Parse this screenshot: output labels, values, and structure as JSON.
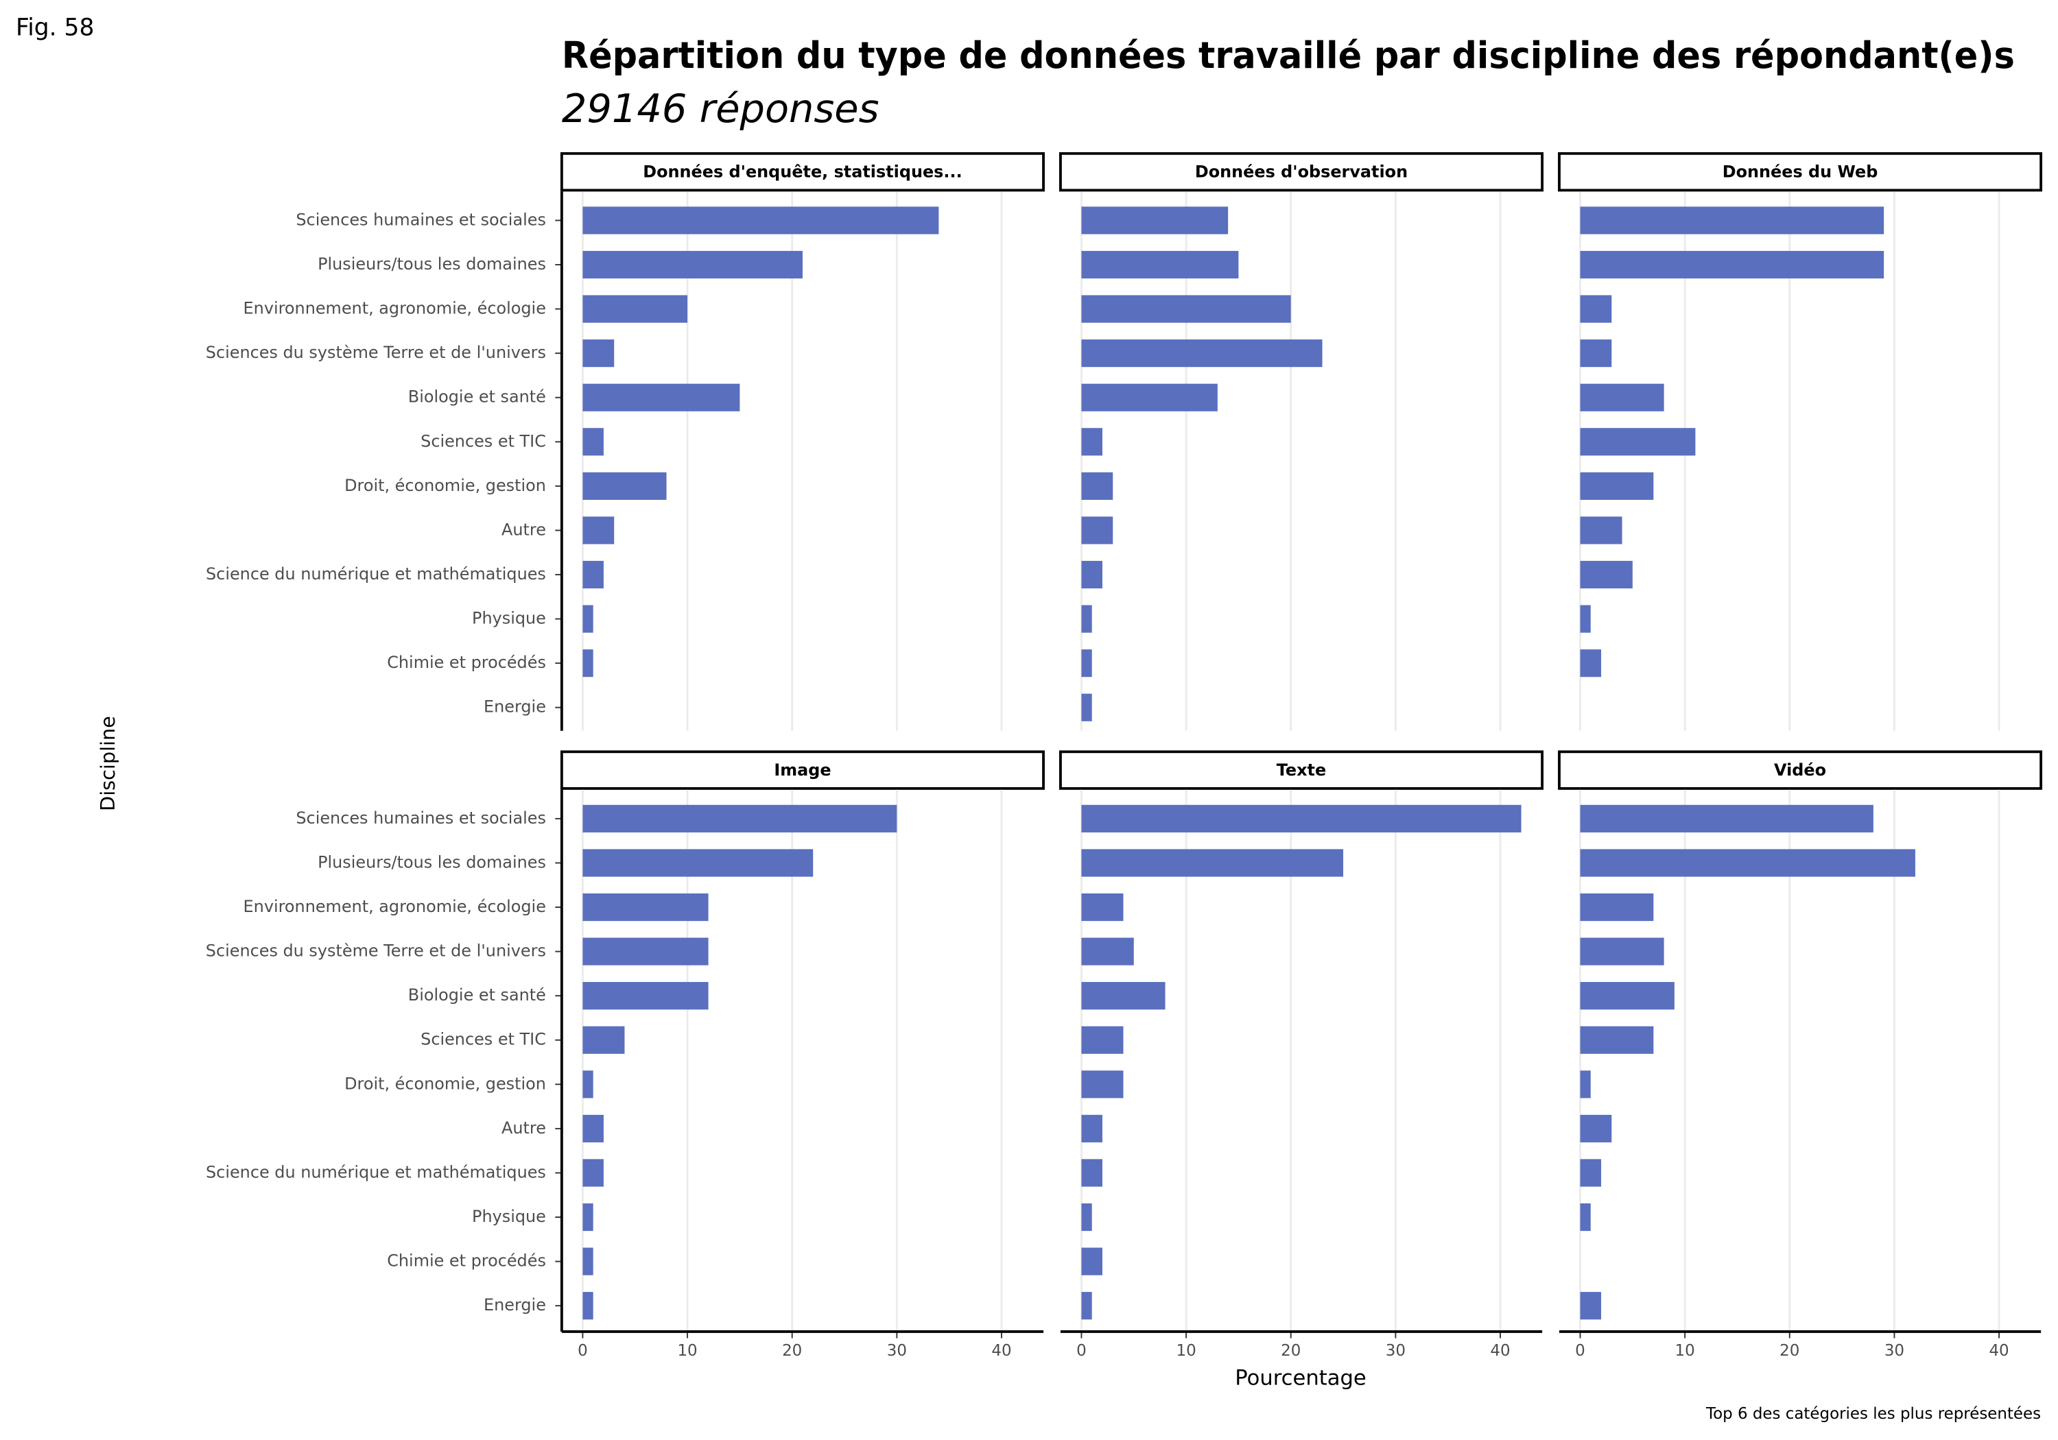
{
  "figure_label": "Fig. 58",
  "title": "Répartition du type de données travaillé par discipline des répondant(e)s",
  "subtitle": "29146 réponses",
  "y_label": "Discipline",
  "x_label": "Pourcentage",
  "caption": "Top 6 des catégories les plus représentées",
  "categories": [
    "Sciences humaines et sociales",
    "Plusieurs/tous les domaines",
    "Environnement, agronomie, écologie",
    "Sciences du système Terre et de l'univers",
    "Biologie et santé",
    "Sciences et TIC",
    "Droit, économie, gestion",
    "Autre",
    "Science du numérique et mathématiques",
    "Physique",
    "Chimie et procédés",
    "Energie"
  ],
  "xlim": [
    -2,
    44
  ],
  "xticks": [
    0,
    10,
    20,
    30,
    40
  ],
  "grid": true,
  "chart_data": [
    {
      "type": "bar",
      "orientation": "horizontal",
      "title": "Données d'enquête, statistiques...",
      "color": "#5a6fbe",
      "values": [
        34,
        21,
        10,
        3,
        15,
        2,
        8,
        3,
        2,
        1,
        1,
        null
      ]
    },
    {
      "type": "bar",
      "orientation": "horizontal",
      "title": "Données d'observation",
      "color": "#5a6fbe",
      "values": [
        14,
        15,
        20,
        23,
        13,
        2,
        3,
        3,
        2,
        1,
        1,
        1
      ]
    },
    {
      "type": "bar",
      "orientation": "horizontal",
      "title": "Données du Web",
      "color": "#5a6fbe",
      "values": [
        29,
        29,
        3,
        3,
        8,
        11,
        7,
        4,
        5,
        1,
        2,
        null
      ]
    },
    {
      "type": "bar",
      "orientation": "horizontal",
      "title": "Image",
      "color": "#5a6fbe",
      "values": [
        30,
        22,
        12,
        12,
        12,
        4,
        1,
        2,
        2,
        1,
        1,
        1
      ]
    },
    {
      "type": "bar",
      "orientation": "horizontal",
      "title": "Texte",
      "color": "#5a6fbe",
      "values": [
        42,
        25,
        4,
        5,
        8,
        4,
        4,
        2,
        2,
        1,
        2,
        1
      ]
    },
    {
      "type": "bar",
      "orientation": "horizontal",
      "title": "Vidéo",
      "color": "#5a6fbe",
      "values": [
        28,
        32,
        7,
        8,
        9,
        7,
        1,
        3,
        2,
        1,
        null,
        2
      ]
    }
  ]
}
